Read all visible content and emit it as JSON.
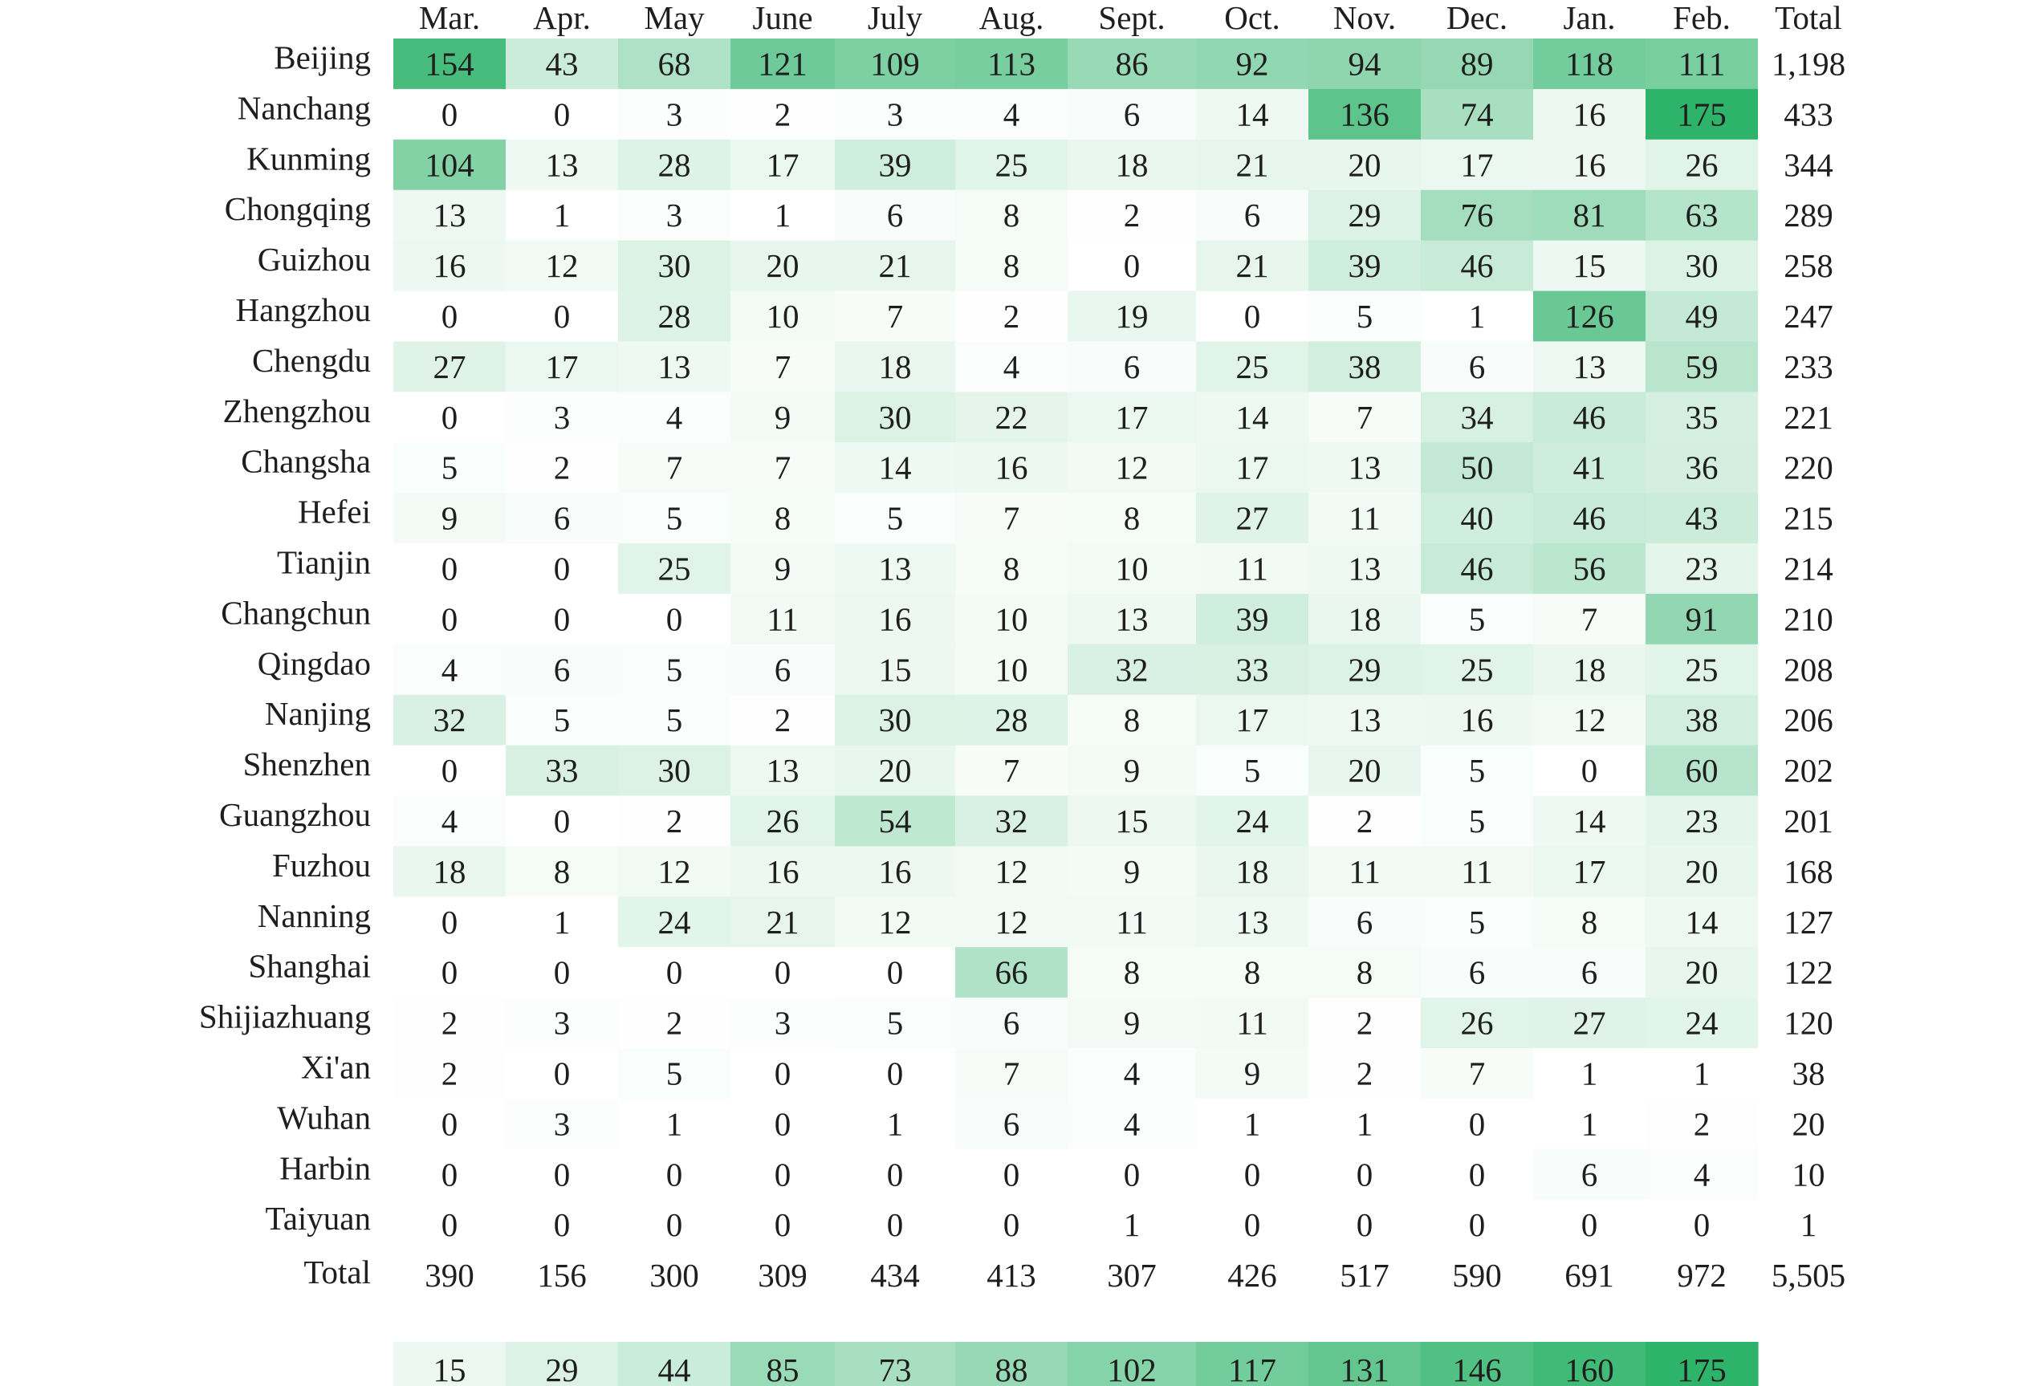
{
  "chart_data": {
    "type": "heatmap",
    "columns": [
      "Mar.",
      "Apr.",
      "May",
      "June",
      "July",
      "Aug.",
      "Sept.",
      "Oct.",
      "Nov.",
      "Dec.",
      "Jan.",
      "Feb."
    ],
    "total_label": "Total",
    "rows": [
      {
        "label": "Beijing",
        "values": [
          154,
          43,
          68,
          121,
          109,
          113,
          86,
          92,
          94,
          89,
          118,
          111
        ],
        "total": "1,198"
      },
      {
        "label": "Nanchang",
        "values": [
          0,
          0,
          3,
          2,
          3,
          4,
          6,
          14,
          136,
          74,
          16,
          175
        ],
        "total": "433"
      },
      {
        "label": "Kunming",
        "values": [
          104,
          13,
          28,
          17,
          39,
          25,
          18,
          21,
          20,
          17,
          16,
          26
        ],
        "total": "344"
      },
      {
        "label": "Chongqing",
        "values": [
          13,
          1,
          3,
          1,
          6,
          8,
          2,
          6,
          29,
          76,
          81,
          63
        ],
        "total": "289"
      },
      {
        "label": "Guizhou",
        "values": [
          16,
          12,
          30,
          20,
          21,
          8,
          0,
          21,
          39,
          46,
          15,
          30
        ],
        "total": "258"
      },
      {
        "label": "Hangzhou",
        "values": [
          0,
          0,
          28,
          10,
          7,
          2,
          19,
          0,
          5,
          1,
          126,
          49
        ],
        "total": "247"
      },
      {
        "label": "Chengdu",
        "values": [
          27,
          17,
          13,
          7,
          18,
          4,
          6,
          25,
          38,
          6,
          13,
          59
        ],
        "total": "233"
      },
      {
        "label": "Zhengzhou",
        "values": [
          0,
          3,
          4,
          9,
          30,
          22,
          17,
          14,
          7,
          34,
          46,
          35
        ],
        "total": "221"
      },
      {
        "label": "Changsha",
        "values": [
          5,
          2,
          7,
          7,
          14,
          16,
          12,
          17,
          13,
          50,
          41,
          36
        ],
        "total": "220"
      },
      {
        "label": "Hefei",
        "values": [
          9,
          6,
          5,
          8,
          5,
          7,
          8,
          27,
          11,
          40,
          46,
          43
        ],
        "total": "215"
      },
      {
        "label": "Tianjin",
        "values": [
          0,
          0,
          25,
          9,
          13,
          8,
          10,
          11,
          13,
          46,
          56,
          23
        ],
        "total": "214"
      },
      {
        "label": "Changchun",
        "values": [
          0,
          0,
          0,
          11,
          16,
          10,
          13,
          39,
          18,
          5,
          7,
          91
        ],
        "total": "210"
      },
      {
        "label": "Qingdao",
        "values": [
          4,
          6,
          5,
          6,
          15,
          10,
          32,
          33,
          29,
          25,
          18,
          25
        ],
        "total": "208"
      },
      {
        "label": "Nanjing",
        "values": [
          32,
          5,
          5,
          2,
          30,
          28,
          8,
          17,
          13,
          16,
          12,
          38
        ],
        "total": "206"
      },
      {
        "label": "Shenzhen",
        "values": [
          0,
          33,
          30,
          13,
          20,
          7,
          9,
          5,
          20,
          5,
          0,
          60
        ],
        "total": "202"
      },
      {
        "label": "Guangzhou",
        "values": [
          4,
          0,
          2,
          26,
          54,
          32,
          15,
          24,
          2,
          5,
          14,
          23
        ],
        "total": "201"
      },
      {
        "label": "Fuzhou",
        "values": [
          18,
          8,
          12,
          16,
          16,
          12,
          9,
          18,
          11,
          11,
          17,
          20
        ],
        "total": "168"
      },
      {
        "label": "Nanning",
        "values": [
          0,
          1,
          24,
          21,
          12,
          12,
          11,
          13,
          6,
          5,
          8,
          14
        ],
        "total": "127"
      },
      {
        "label": "Shanghai",
        "values": [
          0,
          0,
          0,
          0,
          0,
          66,
          8,
          8,
          8,
          6,
          6,
          20
        ],
        "total": "122"
      },
      {
        "label": "Shijiazhuang",
        "values": [
          2,
          3,
          2,
          3,
          5,
          6,
          9,
          11,
          2,
          26,
          27,
          24
        ],
        "total": "120"
      },
      {
        "label": "Xi'an",
        "values": [
          2,
          0,
          5,
          0,
          0,
          7,
          4,
          9,
          2,
          7,
          1,
          1
        ],
        "total": "38"
      },
      {
        "label": "Wuhan",
        "values": [
          0,
          3,
          1,
          0,
          1,
          6,
          4,
          1,
          1,
          0,
          1,
          2
        ],
        "total": "20"
      },
      {
        "label": "Harbin",
        "values": [
          0,
          0,
          0,
          0,
          0,
          0,
          0,
          0,
          0,
          0,
          6,
          4
        ],
        "total": "10"
      },
      {
        "label": "Taiyuan",
        "values": [
          0,
          0,
          0,
          0,
          0,
          0,
          1,
          0,
          0,
          0,
          0,
          0
        ],
        "total": "1"
      }
    ],
    "column_totals": {
      "label": "Total",
      "values": [
        "390",
        "156",
        "300",
        "309",
        "434",
        "413",
        "307",
        "426",
        "517",
        "590",
        "691",
        "972"
      ],
      "grand_total": "5,505"
    },
    "color_scale": {
      "values": [
        15,
        29,
        44,
        85,
        73,
        88,
        102,
        117,
        131,
        146,
        160,
        175
      ],
      "min": 0,
      "max": 175
    },
    "colors": {
      "low": "#ffffff",
      "high": "#2eb36a",
      "text": "#1e1e1e"
    }
  }
}
